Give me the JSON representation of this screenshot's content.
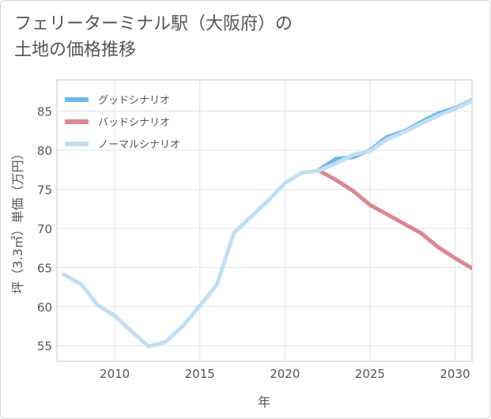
{
  "title_lines": [
    "フェリーターミナル駅（大阪府）の",
    "土地の価格推移"
  ],
  "chart_data": {
    "type": "line",
    "title": "フェリーターミナル駅（大阪府）の土地の価格推移",
    "xlabel": "年",
    "ylabel": "坪（3.3㎡）単価（万円）",
    "xlim": [
      2006.6,
      2031
    ],
    "ylim": [
      53,
      89
    ],
    "x_ticks": [
      "2010",
      "2015",
      "2020",
      "2025",
      "2030"
    ],
    "y_ticks": [
      "55",
      "60",
      "65",
      "70",
      "75",
      "80",
      "85"
    ],
    "grid": true,
    "legend_position": "top-left",
    "series": [
      {
        "name": "グッドシナリオ",
        "color": "#6cb8ea",
        "x": [
          2022,
          2023,
          2024,
          2025,
          2026,
          2027,
          2028,
          2029,
          2030,
          2031
        ],
        "y": [
          77.5,
          78.9,
          79.1,
          80.0,
          81.7,
          82.4,
          83.6,
          84.7,
          85.4,
          86.4
        ]
      },
      {
        "name": "バッドシナリオ",
        "color": "#dc8790",
        "x": [
          2022,
          2023,
          2024,
          2025,
          2026,
          2027,
          2028,
          2029,
          2030,
          2031
        ],
        "y": [
          77.4,
          76.2,
          74.8,
          73.0,
          71.8,
          70.6,
          69.4,
          67.6,
          66.2,
          64.9
        ]
      },
      {
        "name": "ノーマルシナリオ",
        "color": "#c2dff0",
        "x": [
          2007,
          2008,
          2009,
          2010,
          2011,
          2012,
          2013,
          2014,
          2015,
          2016,
          2017,
          2018,
          2019,
          2020,
          2021,
          2022,
          2023,
          2024,
          2025,
          2026,
          2027,
          2028,
          2029,
          2030,
          2031
        ],
        "y": [
          64.1,
          62.9,
          60.2,
          58.8,
          56.8,
          54.9,
          55.5,
          57.5,
          60.1,
          62.8,
          69.4,
          71.5,
          73.5,
          75.8,
          77.1,
          77.4,
          78.3,
          79.4,
          79.9,
          81.4,
          82.3,
          83.4,
          84.4,
          85.3,
          86.3
        ]
      }
    ]
  }
}
